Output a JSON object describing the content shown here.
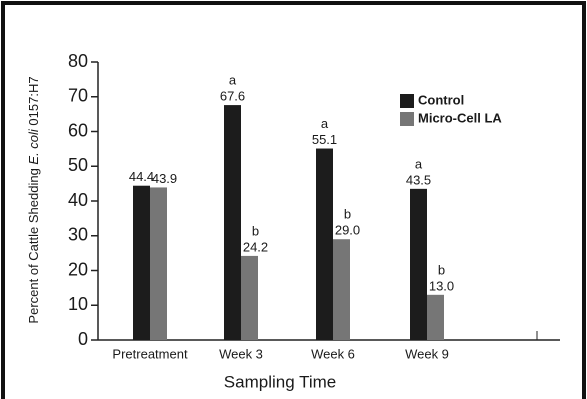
{
  "chart_data": {
    "type": "bar",
    "y_label": [
      "Percent of Cattle Shedding ",
      "E. coli",
      " 0157:H7"
    ],
    "x_label": "Sampling Time",
    "categories": [
      "Pretreatment",
      "Week 3",
      "Week 6",
      "Week 9"
    ],
    "series": [
      {
        "name": "Control",
        "color": "#1c1c1c",
        "values": [
          44.4,
          67.6,
          55.1,
          43.5
        ],
        "letters": [
          null,
          "a",
          "a",
          "a"
        ]
      },
      {
        "name": "Micro-Cell LA",
        "color": "#767676",
        "values": [
          43.9,
          24.2,
          29.0,
          13.0
        ],
        "value_labels": [
          "43.9",
          "24.2",
          "29.0",
          "13.0"
        ],
        "letters": [
          null,
          "b",
          "b",
          "b"
        ]
      }
    ],
    "ylim": [
      0,
      80
    ],
    "yticks": [
      0,
      10,
      20,
      30,
      40,
      50,
      60,
      70,
      80
    ]
  }
}
